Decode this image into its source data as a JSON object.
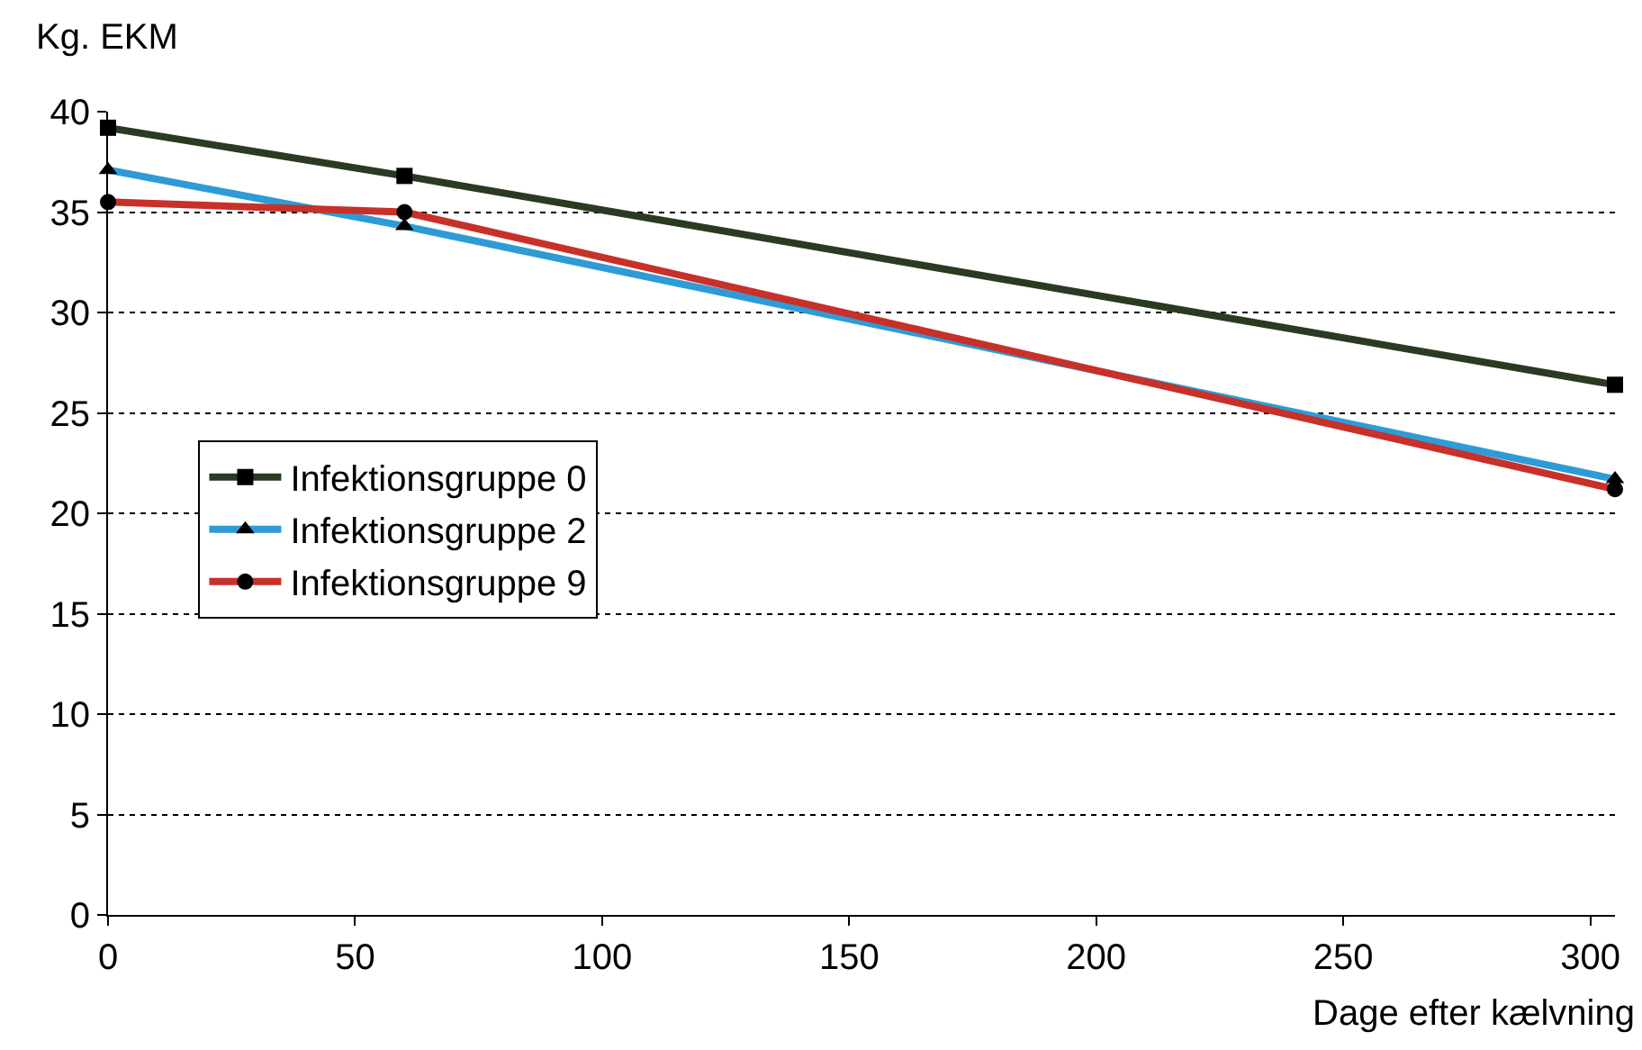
{
  "chart_data": {
    "type": "line",
    "xlabel": "Dage efter kælvning",
    "ylabel": "Kg. EKM",
    "xlim": [
      0,
      305
    ],
    "xticks": [
      0,
      50,
      100,
      150,
      200,
      250,
      300
    ],
    "ylim": [
      0,
      40
    ],
    "yticks": [
      0,
      5,
      10,
      15,
      20,
      25,
      30,
      35,
      40
    ],
    "grid": "y",
    "legend": "left",
    "line_style": "solid",
    "series": [
      {
        "name": "Infektionsgruppe 0",
        "color": "#2b3a22",
        "marker": "square",
        "x": [
          0,
          60,
          305
        ],
        "values": [
          39.2,
          36.8,
          26.4
        ]
      },
      {
        "name": "Infektionsgruppe 2",
        "color": "#2e9bd6",
        "marker": "triangle",
        "x": [
          0,
          60,
          305
        ],
        "values": [
          37.1,
          34.3,
          21.7
        ]
      },
      {
        "name": "Infektionsgruppe 9",
        "color": "#c8302a",
        "marker": "circle",
        "x": [
          0,
          60,
          305
        ],
        "values": [
          35.5,
          35.0,
          21.2
        ]
      }
    ]
  }
}
